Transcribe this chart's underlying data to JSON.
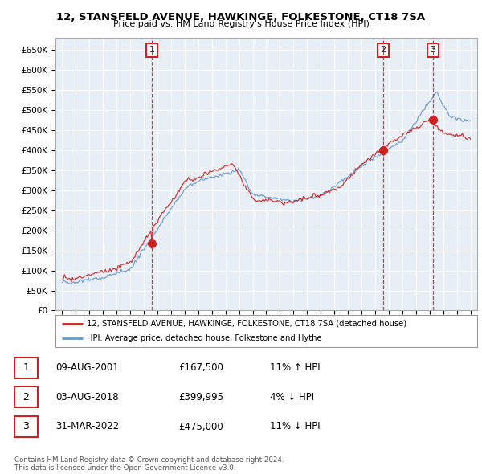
{
  "title": "12, STANSFELD AVENUE, HAWKINGE, FOLKESTONE, CT18 7SA",
  "subtitle": "Price paid vs. HM Land Registry's House Price Index (HPI)",
  "ylabel_ticks": [
    "£0",
    "£50K",
    "£100K",
    "£150K",
    "£200K",
    "£250K",
    "£300K",
    "£350K",
    "£400K",
    "£450K",
    "£500K",
    "£550K",
    "£600K",
    "£650K"
  ],
  "ytick_values": [
    0,
    50000,
    100000,
    150000,
    200000,
    250000,
    300000,
    350000,
    400000,
    450000,
    500000,
    550000,
    600000,
    650000
  ],
  "xlim": [
    1994.5,
    2025.5
  ],
  "ylim": [
    0,
    680000
  ],
  "chart_bg": "#e8eef5",
  "grid_color": "#ffffff",
  "hpi_color": "#6699cc",
  "price_color": "#cc2222",
  "transactions": [
    {
      "num": 1,
      "date": "09-AUG-2001",
      "price": 167500,
      "year": 2001.6,
      "pct": "11%",
      "dir": "↑"
    },
    {
      "num": 2,
      "date": "03-AUG-2018",
      "price": 399995,
      "year": 2018.6,
      "pct": "4%",
      "dir": "↓"
    },
    {
      "num": 3,
      "date": "31-MAR-2022",
      "price": 475000,
      "year": 2022.25,
      "pct": "11%",
      "dir": "↓"
    }
  ],
  "legend_label_red": "12, STANSFELD AVENUE, HAWKINGE, FOLKESTONE, CT18 7SA (detached house)",
  "legend_label_blue": "HPI: Average price, detached house, Folkestone and Hythe",
  "footer": "Contains HM Land Registry data © Crown copyright and database right 2024.\nThis data is licensed under the Open Government Licence v3.0.",
  "table_rows": [
    {
      "num": 1,
      "date": "09-AUG-2001",
      "price": "£167,500",
      "pct": "11% ↑ HPI"
    },
    {
      "num": 2,
      "date": "03-AUG-2018",
      "price": "£399,995",
      "pct": "4% ↓ HPI"
    },
    {
      "num": 3,
      "date": "31-MAR-2022",
      "price": "£475,000",
      "pct": "11% ↓ HPI"
    }
  ]
}
